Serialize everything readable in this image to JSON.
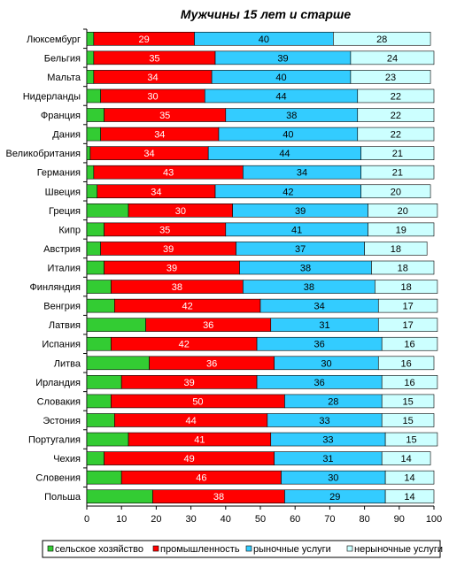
{
  "chart_data": {
    "type": "bar",
    "orientation": "horizontal",
    "stacked": true,
    "title": "Мужчины 15 лет и старше",
    "xlabel": "",
    "ylabel": "",
    "xlim": [
      0,
      100
    ],
    "xticks": [
      0,
      10,
      20,
      30,
      40,
      50,
      60,
      70,
      80,
      90,
      100
    ],
    "legend_position": "bottom",
    "categories": [
      "Люксембург",
      "Бельгия",
      "Мальта",
      "Нидерланды",
      "Франция",
      "Дания",
      "Великобритания",
      "Германия",
      "Швеция",
      "Греция",
      "Кипр",
      "Австрия",
      "Италия",
      "Финляндия",
      "Венгрия",
      "Латвия",
      "Испания",
      "Литва",
      "Ирландия",
      "Словакия",
      "Эстония",
      "Португалия",
      "Чехия",
      "Словения",
      "Польша"
    ],
    "series": [
      {
        "name": "сельское хозяйство",
        "color": "#33cc33",
        "labeled": false,
        "values": [
          2,
          2,
          2,
          4,
          5,
          4,
          1,
          2,
          3,
          12,
          5,
          4,
          5,
          7,
          8,
          17,
          7,
          18,
          10,
          7,
          8,
          12,
          5,
          10,
          19
        ]
      },
      {
        "name": "промышленность",
        "color": "#ff0000",
        "labeled": true,
        "values": [
          29,
          35,
          34,
          30,
          35,
          34,
          34,
          43,
          34,
          30,
          35,
          39,
          39,
          38,
          42,
          36,
          42,
          36,
          39,
          50,
          44,
          41,
          49,
          46,
          38
        ]
      },
      {
        "name": "рыночные услуги",
        "color": "#33ccff",
        "labeled": true,
        "values": [
          40,
          39,
          40,
          44,
          38,
          40,
          44,
          34,
          42,
          39,
          41,
          37,
          38,
          38,
          34,
          31,
          36,
          30,
          36,
          28,
          33,
          33,
          31,
          30,
          29
        ]
      },
      {
        "name": "нерыночные услуги",
        "color": "#ccffff",
        "labeled": true,
        "values": [
          28,
          24,
          23,
          22,
          22,
          22,
          21,
          21,
          20,
          20,
          19,
          18,
          18,
          18,
          17,
          17,
          16,
          16,
          16,
          15,
          15,
          15,
          14,
          14,
          14
        ]
      }
    ]
  }
}
